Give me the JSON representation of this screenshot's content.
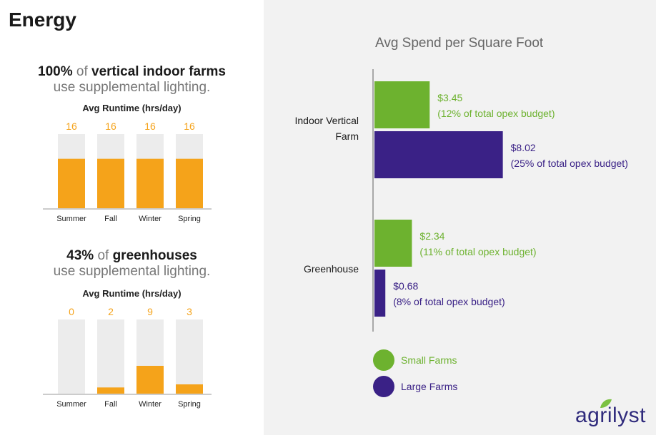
{
  "page": {
    "title": "Energy",
    "logo_text": "agrilyst"
  },
  "colors": {
    "orange": "#f5a31a",
    "bar_track": "#ececec",
    "green": "#6db22f",
    "purple": "#3a2186"
  },
  "indoor": {
    "pct": "100%",
    "of": " of ",
    "subject": "vertical indoor farms",
    "line2": "use supplemental lighting.",
    "runtime_title": "Avg Runtime (hrs/day)"
  },
  "greenhouse": {
    "pct": "43%",
    "of": " of ",
    "subject": "greenhouses",
    "line2": "use supplemental lighting.",
    "runtime_title": "Avg Runtime (hrs/day)"
  },
  "spend": {
    "title": "Avg Spend per Square Foot",
    "legend": [
      {
        "label": "Small Farms",
        "color": "#6db22f"
      },
      {
        "label": "Large Farms",
        "color": "#3a2186"
      }
    ]
  },
  "chart_data": [
    {
      "type": "bar",
      "title": "Avg Runtime (hrs/day)",
      "categories": [
        "Summer",
        "Fall",
        "Winter",
        "Spring"
      ],
      "values": [
        16,
        16,
        16,
        16
      ],
      "value_labels": [
        "16",
        "16",
        "16",
        "16"
      ],
      "ylim": [
        0,
        24
      ]
    },
    {
      "type": "bar",
      "title": "Avg Runtime (hrs/day)",
      "categories": [
        "Summer",
        "Fall",
        "Winter",
        "Spring"
      ],
      "values": [
        0,
        2,
        9,
        3
      ],
      "value_labels": [
        "0",
        "2",
        "9",
        "3"
      ],
      "ylim": [
        0,
        24
      ]
    },
    {
      "type": "bar",
      "orientation": "horizontal",
      "title": "Avg Spend per Square Foot",
      "categories": [
        "Indoor Vertical Farm",
        "Greenhouse"
      ],
      "series": [
        {
          "name": "Small Farms",
          "values": [
            3.45,
            2.34
          ],
          "labels": [
            "$3.45",
            "$2.34"
          ],
          "notes": [
            "(12% of total opex budget)",
            "(11% of total opex budget)"
          ]
        },
        {
          "name": "Large Farms",
          "values": [
            8.02,
            0.68
          ],
          "labels": [
            "$8.02",
            "$0.68"
          ],
          "notes": [
            "(25% of total opex budget)",
            "(8% of total opex budget)"
          ]
        }
      ],
      "legend": "bottom-left"
    }
  ]
}
